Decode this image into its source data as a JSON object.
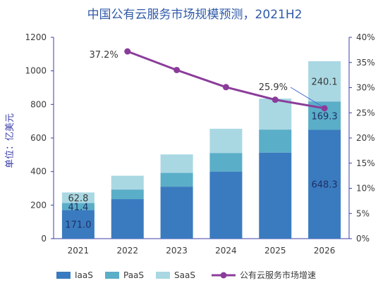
{
  "chart_data": {
    "type": "bar",
    "stacked": true,
    "title": "中国公有云服务市场规模预测，2021H2",
    "ylabel": "单位：亿美元",
    "y2label": "",
    "categories": [
      "2021",
      "2022",
      "2023",
      "2024",
      "2025",
      "2026"
    ],
    "ylim": [
      0,
      1200
    ],
    "yticks": [
      "0",
      "200",
      "400",
      "600",
      "800",
      "1000",
      "1200"
    ],
    "y2lim": [
      0,
      40
    ],
    "y2ticks": [
      "0%",
      "5%",
      "10%",
      "15%",
      "20%",
      "25%",
      "30%",
      "35%",
      "40%"
    ],
    "grid": false,
    "legend_position": "bottom",
    "series": [
      {
        "name": "IaaS",
        "color": "#3a7bbf",
        "values": [
          171.0,
          235,
          310,
          400,
          513,
          648.3
        ]
      },
      {
        "name": "PaaS",
        "color": "#5aaec8",
        "values": [
          41.4,
          58,
          82,
          110,
          137,
          169.3
        ]
      },
      {
        "name": "SaaS",
        "color": "#a9d8e3",
        "values": [
          62.8,
          82,
          110,
          145,
          185,
          240.1
        ]
      }
    ],
    "line_series": {
      "name": "公有云服务市场增速",
      "color": "#8b3c9a",
      "axis": "right",
      "x": [
        "2022",
        "2023",
        "2024",
        "2025",
        "2026"
      ],
      "values": [
        37.2,
        33.5,
        30.1,
        27.6,
        25.9
      ]
    },
    "bar_labels": {
      "2021": [
        "171.0",
        "41.4",
        "62.8"
      ],
      "2026": [
        "648.3",
        "169.3",
        "240.1"
      ]
    },
    "line_labels": [
      "37.2%",
      "25.9%"
    ],
    "colors": {
      "title": "#2f5aa8",
      "axis": "#3b3fa8",
      "tick": "#3a3a3a"
    }
  }
}
